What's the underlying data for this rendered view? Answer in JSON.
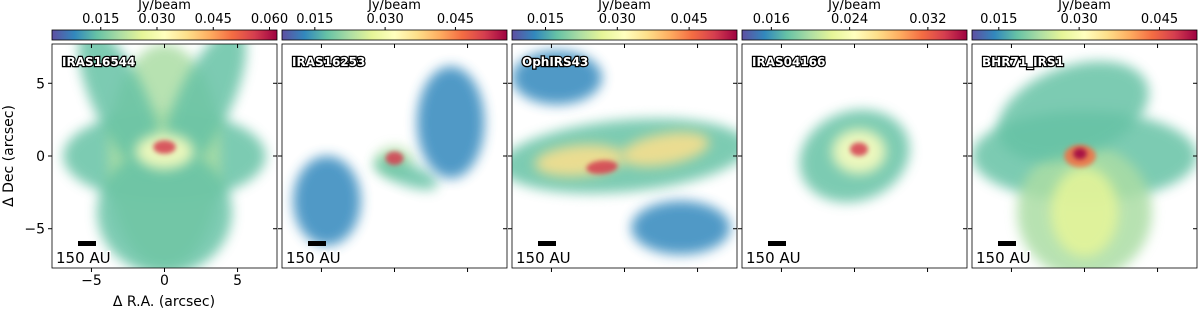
{
  "chart_data": [
    {
      "type": "heatmap",
      "title": "IRAS16544",
      "colorbar_label": "Jy/beam",
      "clim": [
        0.002,
        0.062
      ],
      "cticks": [
        0.015,
        {
          "value": 0.03,
          "label": "0.030"
        },
        0.045,
        {
          "value": 0.06,
          "label": "0.060"
        }
      ],
      "scalebar_label": "150 AU",
      "xlabel": "Δ R.A. (arcsec)",
      "ylabel": "Δ Dec (arcsec)",
      "xlim": [
        -7.7,
        7.7
      ],
      "ylim": [
        -7.7,
        7.7
      ],
      "xticks": [
        {
          "value": -5,
          "label": "−5"
        },
        0,
        5
      ],
      "yticks": [
        {
          "value": -5,
          "label": "−5"
        },
        0,
        5
      ],
      "colormap": [
        "#5e4fa2",
        "#3288bd",
        "#66c2a5",
        "#abdda4",
        "#e6f598",
        "#ffffbf",
        "#fee08b",
        "#fdae61",
        "#f46d43",
        "#d53e4f",
        "#9e0142"
      ]
    },
    {
      "type": "heatmap",
      "title": "IRAS16253",
      "colorbar_label": "Jy/beam",
      "clim": [
        0.008,
        0.056
      ],
      "cticks": [
        0.015,
        {
          "value": 0.03,
          "label": "0.030"
        },
        0.045
      ],
      "scalebar_label": "150 AU"
    },
    {
      "type": "heatmap",
      "title": "OphIRS43",
      "colorbar_label": "Jy/beam",
      "clim": [
        0.008,
        0.055
      ],
      "cticks": [
        0.015,
        {
          "value": 0.03,
          "label": "0.030"
        },
        0.045
      ],
      "scalebar_label": "150 AU"
    },
    {
      "type": "heatmap",
      "title": "IRAS04166",
      "colorbar_label": "Jy/beam",
      "clim": [
        0.013,
        0.036
      ],
      "cticks": [
        0.016,
        0.024,
        0.032
      ],
      "scalebar_label": "150 AU"
    },
    {
      "type": "heatmap",
      "title": "BHR71_IRS1",
      "colorbar_label": "Jy/beam",
      "clim": [
        0.01,
        0.052
      ],
      "cticks": [
        0.015,
        {
          "value": 0.03,
          "label": "0.030"
        },
        0.045
      ],
      "scalebar_label": "150 AU"
    }
  ]
}
